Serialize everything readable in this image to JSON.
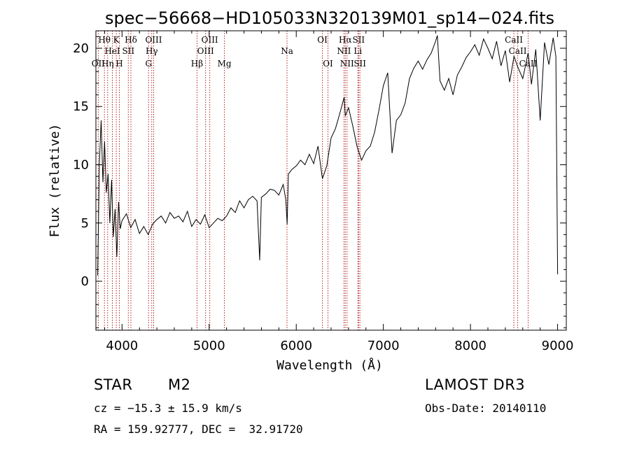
{
  "chart_data": {
    "type": "line",
    "title": "spec−56668−HD105033N320139M01_sp14−024.fits",
    "xlabel": "Wavelength (Å)",
    "ylabel": "Flux (relative)",
    "xlim": [
      3700,
      9100
    ],
    "ylim": [
      -4.2,
      21.5
    ],
    "xticks": [
      4000,
      5000,
      6000,
      7000,
      8000,
      9000
    ],
    "yticks": [
      0,
      5,
      10,
      15,
      20
    ],
    "series": [
      {
        "name": "spectrum",
        "x": [
          3720,
          3740,
          3760,
          3780,
          3800,
          3820,
          3840,
          3860,
          3880,
          3900,
          3920,
          3940,
          3960,
          3980,
          4000,
          4050,
          4100,
          4150,
          4200,
          4250,
          4300,
          4350,
          4400,
          4450,
          4500,
          4550,
          4600,
          4650,
          4700,
          4750,
          4800,
          4850,
          4900,
          4950,
          5000,
          5050,
          5100,
          5150,
          5200,
          5250,
          5300,
          5350,
          5400,
          5450,
          5500,
          5550,
          5580,
          5600,
          5650,
          5700,
          5750,
          5800,
          5850,
          5880,
          5895,
          5910,
          5950,
          6000,
          6050,
          6100,
          6150,
          6200,
          6250,
          6300,
          6350,
          6400,
          6450,
          6500,
          6550,
          6563,
          6600,
          6650,
          6700,
          6750,
          6800,
          6850,
          6900,
          6950,
          7000,
          7050,
          7100,
          7150,
          7200,
          7250,
          7300,
          7350,
          7400,
          7450,
          7500,
          7550,
          7600,
          7620,
          7650,
          7700,
          7750,
          7800,
          7850,
          7900,
          7950,
          8000,
          8050,
          8100,
          8150,
          8200,
          8250,
          8300,
          8350,
          8400,
          8450,
          8500,
          8542,
          8600,
          8662,
          8700,
          8750,
          8800,
          8850,
          8900,
          8950,
          8980,
          9000
        ],
        "values": [
          0.5,
          10.2,
          13.8,
          8.5,
          12.0,
          7.6,
          9.2,
          5.0,
          8.7,
          3.8,
          6.2,
          2.1,
          6.8,
          4.5,
          5.2,
          5.8,
          4.6,
          5.3,
          4.1,
          4.7,
          4.0,
          4.9,
          5.3,
          5.6,
          5.0,
          5.9,
          5.4,
          5.6,
          5.1,
          6.0,
          4.7,
          5.3,
          4.9,
          5.7,
          4.6,
          5.0,
          5.4,
          5.2,
          5.6,
          6.3,
          5.9,
          6.9,
          6.3,
          7.0,
          7.3,
          6.9,
          1.8,
          7.2,
          7.5,
          7.9,
          7.8,
          7.4,
          8.3,
          7.0,
          4.9,
          9.2,
          9.6,
          9.9,
          10.4,
          10.0,
          10.9,
          10.1,
          11.6,
          8.8,
          9.9,
          12.3,
          13.1,
          14.4,
          15.8,
          14.2,
          14.9,
          13.3,
          11.5,
          10.4,
          11.2,
          11.6,
          12.8,
          14.7,
          16.8,
          17.9,
          11.0,
          13.8,
          14.3,
          15.3,
          17.4,
          18.3,
          18.9,
          18.2,
          19.0,
          19.6,
          20.6,
          21.1,
          17.2,
          16.4,
          17.4,
          16.0,
          17.7,
          18.4,
          19.2,
          19.7,
          20.3,
          19.4,
          20.8,
          20.0,
          19.1,
          20.6,
          18.5,
          19.8,
          17.1,
          19.3,
          18.4,
          17.4,
          19.6,
          16.9,
          19.9,
          13.8,
          20.5,
          18.6,
          20.9,
          19.3,
          0.6
        ]
      }
    ],
    "lines": [
      {
        "name": "OII",
        "x": 3727,
        "row": 3
      },
      {
        "name": "Hθ",
        "x": 3798,
        "row": 1
      },
      {
        "name": "Hη",
        "x": 3835,
        "row": 3
      },
      {
        "name": "HeI",
        "x": 3889,
        "row": 2
      },
      {
        "name": "K",
        "x": 3934,
        "row": 1
      },
      {
        "name": "H",
        "x": 3969,
        "row": 3
      },
      {
        "name": "SII",
        "x": 4072,
        "row": 2
      },
      {
        "name": "Hδ",
        "x": 4102,
        "row": 1
      },
      {
        "name": "G",
        "x": 4305,
        "row": 3
      },
      {
        "name": "Hγ",
        "x": 4341,
        "row": 2
      },
      {
        "name": "OIII",
        "x": 4363,
        "row": 1
      },
      {
        "name": "Hβ",
        "x": 4861,
        "row": 3
      },
      {
        "name": "OIII",
        "x": 4959,
        "row": 2
      },
      {
        "name": "OIII",
        "x": 5007,
        "row": 1
      },
      {
        "name": "Mg",
        "x": 5175,
        "row": 3
      },
      {
        "name": "Na",
        "x": 5894,
        "row": 2
      },
      {
        "name": "OI",
        "x": 6300,
        "row": 1
      },
      {
        "name": "OI",
        "x": 6364,
        "row": 3
      },
      {
        "name": "NII",
        "x": 6548,
        "row": 2
      },
      {
        "name": "Hα",
        "x": 6563,
        "row": 1
      },
      {
        "name": "NII",
        "x": 6583,
        "row": 3
      },
      {
        "name": "Li",
        "x": 6708,
        "row": 2
      },
      {
        "name": "SII",
        "x": 6716,
        "row": 1
      },
      {
        "name": "SII",
        "x": 6731,
        "row": 3
      },
      {
        "name": "CaII",
        "x": 8498,
        "row": 1
      },
      {
        "name": "CaII",
        "x": 8542,
        "row": 2
      },
      {
        "name": "CaII",
        "x": 8662,
        "row": 3
      }
    ]
  },
  "info": {
    "object_class": "STAR",
    "subclass": "M2",
    "survey": "LAMOST DR3",
    "cz": "cz = −15.3 ± 15.9 km/s",
    "obs_date": "Obs-Date: 20140110",
    "coords": "RA = 159.92777, DEC =  32.91720"
  },
  "colors": {
    "spectrum": "#000000",
    "line_marker": "#b22222",
    "axes": "#000000"
  }
}
